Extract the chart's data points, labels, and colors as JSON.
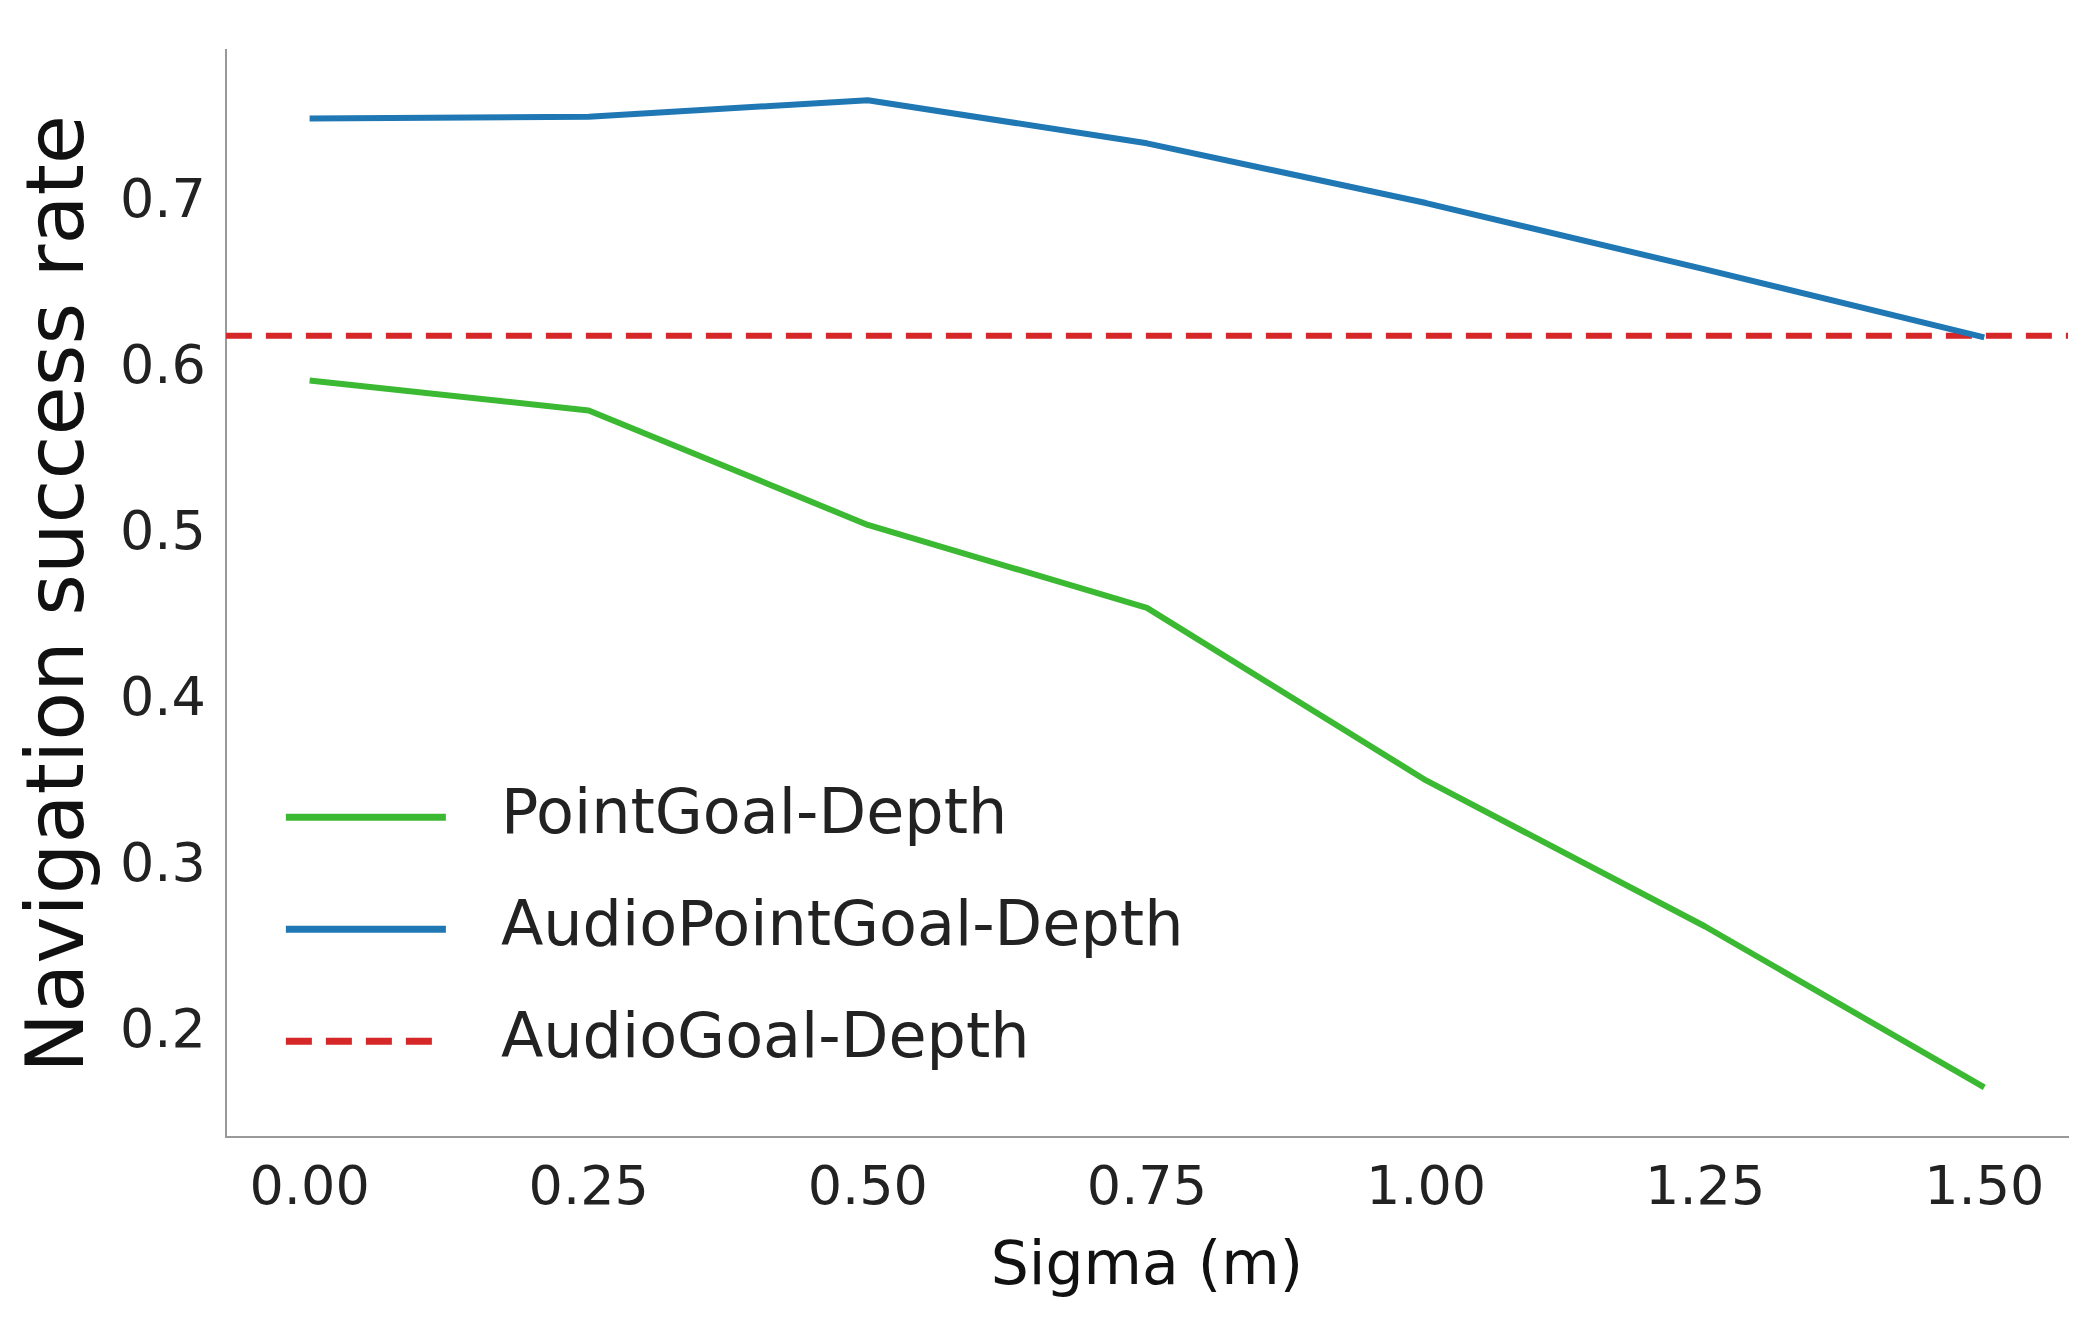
{
  "chart_data": {
    "type": "line",
    "xlabel": "Sigma (m)",
    "ylabel": "Navigation success rate",
    "x": [
      0,
      0.25,
      0.5,
      0.75,
      1.0,
      1.25,
      1.5
    ],
    "series": [
      {
        "name": "PointGoal-Depth",
        "color": "#3cb932",
        "values": [
          0.593,
          0.575,
          0.506,
          0.456,
          0.352,
          0.264,
          0.167
        ]
      },
      {
        "name": "AudioPointGoal-Depth",
        "color": "#1f77b4",
        "values": [
          0.751,
          0.752,
          0.762,
          0.736,
          0.7,
          0.66,
          0.619
        ]
      },
      {
        "name": "AudioGoal-Depth",
        "color": "#d62728",
        "x": [
          -0.075,
          1.575
        ],
        "values": [
          0.62,
          0.62
        ],
        "line_style": "dashed"
      }
    ],
    "xlim": [
      -0.075,
      1.575
    ],
    "xticks": [
      {
        "value": 0,
        "label": "0.00"
      },
      {
        "value": 0.25,
        "label": "0.25"
      },
      {
        "value": 0.5,
        "label": "0.50"
      },
      {
        "value": 0.75,
        "label": "0.75"
      },
      {
        "value": 1.0,
        "label": "1.00"
      },
      {
        "value": 1.25,
        "label": "1.25"
      },
      {
        "value": 1.5,
        "label": "1.50"
      }
    ],
    "ylim": [
      0.137,
      0.792
    ],
    "yticks": [
      0.2,
      0.3,
      0.4,
      0.5,
      0.6,
      0.7
    ],
    "grid": false,
    "legend": "bottom left",
    "marker": "none",
    "line_style": "solid"
  }
}
